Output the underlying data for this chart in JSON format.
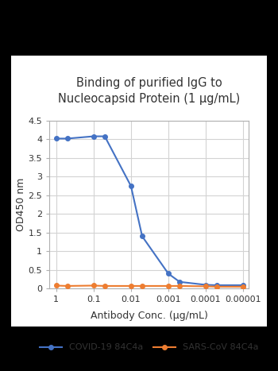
{
  "title": "Binding of purified IgG to\nNucleocapsid Protein (1 μg/mL)",
  "xlabel": "Antibody Conc. (μg/mL)",
  "ylabel": "OD450 nm",
  "covid_x": [
    1,
    0.5,
    0.1,
    0.05,
    0.01,
    0.005,
    0.001,
    0.0005,
    0.0001,
    5e-05,
    1e-05
  ],
  "covid_y": [
    4.02,
    4.02,
    4.08,
    4.08,
    2.75,
    1.4,
    0.4,
    0.18,
    0.1,
    0.09,
    0.09
  ],
  "sars_x": [
    1,
    0.5,
    0.1,
    0.05,
    0.01,
    0.005,
    0.001,
    0.0005,
    0.0001,
    5e-05,
    1e-05
  ],
  "sars_y": [
    0.08,
    0.07,
    0.08,
    0.07,
    0.07,
    0.07,
    0.07,
    0.07,
    0.06,
    0.05,
    0.05
  ],
  "covid_color": "#4472C4",
  "sars_color": "#ED7D31",
  "covid_label": "COVID-19 84C4a",
  "sars_label": "SARS-CoV 84C4a",
  "ylim": [
    0,
    4.5
  ],
  "yticks": [
    0,
    0.5,
    1.0,
    1.5,
    2.0,
    2.5,
    3.0,
    3.5,
    4.0,
    4.5
  ],
  "ytick_labels": [
    "0",
    "0.5",
    "1",
    "1.5",
    "2",
    "2.5",
    "3",
    "3.5",
    "4",
    "4.5"
  ],
  "xtick_positions": [
    1,
    0.1,
    0.01,
    0.001,
    0.0001,
    1e-05
  ],
  "xtick_labels": [
    "1",
    "0.1",
    "0.01",
    "0.001",
    "0.0001",
    "0.00001"
  ],
  "xlim_left": 1.5,
  "xlim_right": 7e-06,
  "background_color": "#ffffff",
  "outer_bg": "#000000",
  "grid_color": "#d3d3d3",
  "title_fontsize": 10.5,
  "label_fontsize": 9,
  "tick_fontsize": 8,
  "legend_fontsize": 8,
  "marker": "o",
  "markersize": 4,
  "linewidth": 1.5
}
